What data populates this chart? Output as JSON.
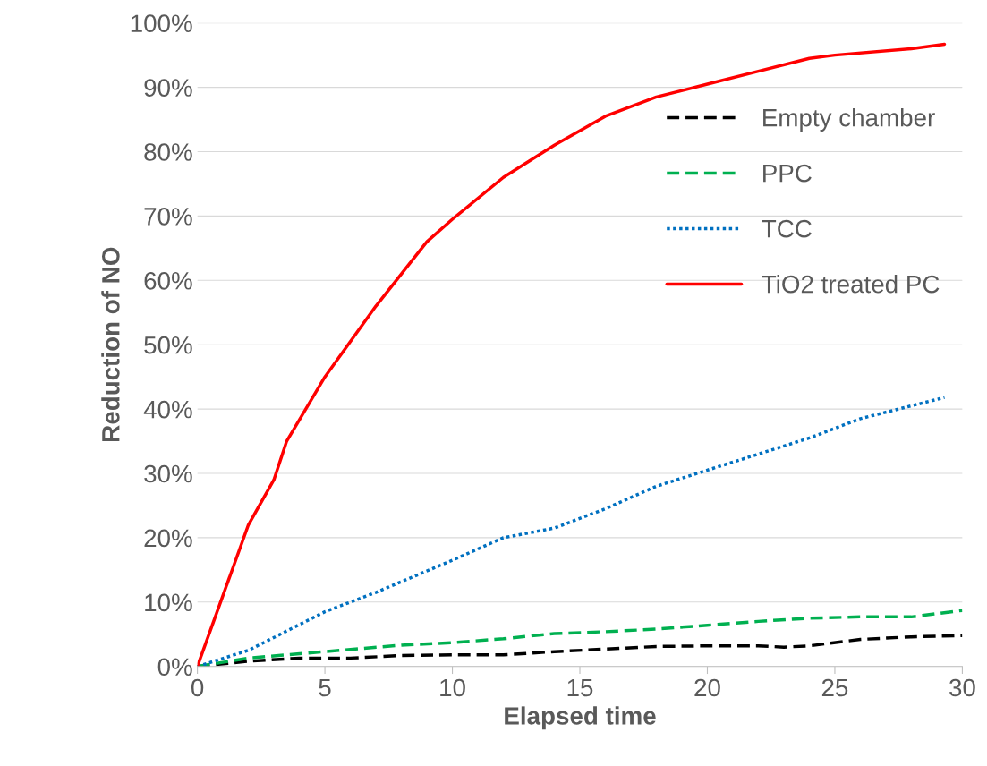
{
  "chart_data": {
    "type": "line",
    "xlabel": "Elapsed time",
    "ylabel": "Reduction of NO",
    "xlim": [
      0,
      30
    ],
    "xticks": [
      0,
      5,
      10,
      15,
      20,
      25,
      30
    ],
    "ylim": [
      0,
      100
    ],
    "yticks": [
      {
        "value": 0,
        "label": "0%"
      },
      {
        "value": 10,
        "label": "10%"
      },
      {
        "value": 20,
        "label": "20%"
      },
      {
        "value": 30,
        "label": "30%"
      },
      {
        "value": 40,
        "label": "40%"
      },
      {
        "value": 50,
        "label": "50%"
      },
      {
        "value": 60,
        "label": "60%"
      },
      {
        "value": 70,
        "label": "70%"
      },
      {
        "value": 80,
        "label": "80%"
      },
      {
        "value": 90,
        "label": "90%"
      },
      {
        "value": 100,
        "label": "100%"
      }
    ],
    "grid": "y",
    "legend": "right",
    "series": [
      {
        "name": "Empty chamber",
        "color": "#000000",
        "line_style": "dashed",
        "x": [
          0,
          2,
          4,
          6,
          8,
          10,
          12,
          14,
          16,
          18,
          20,
          22,
          23,
          24,
          26,
          28,
          30
        ],
        "values": [
          0,
          0.8,
          1.3,
          1.3,
          1.7,
          1.8,
          1.8,
          2.3,
          2.7,
          3.1,
          3.2,
          3.2,
          3,
          3.2,
          4.2,
          4.6,
          4.8
        ]
      },
      {
        "name": "PPC",
        "color": "#00b050",
        "line_style": "dashed",
        "x": [
          0,
          2,
          5,
          8,
          10,
          12,
          14,
          16,
          18,
          20,
          22,
          24,
          26,
          28,
          30
        ],
        "values": [
          0,
          1.3,
          2.3,
          3.3,
          3.7,
          4.3,
          5.1,
          5.4,
          5.8,
          6.4,
          7,
          7.5,
          7.7,
          7.7,
          8.7
        ]
      },
      {
        "name": "TCC",
        "color": "#0070c0",
        "line_style": "dotted",
        "x": [
          0,
          2,
          4,
          5,
          7,
          10,
          12,
          14,
          16,
          18,
          20,
          22,
          24,
          26,
          28,
          29.3
        ],
        "values": [
          0,
          2.5,
          6.5,
          8.5,
          11.5,
          16.5,
          20,
          21.5,
          24.5,
          28,
          30.5,
          33,
          35.5,
          38.5,
          40.5,
          41.8
        ]
      },
      {
        "name": "TiO2 treated PC",
        "color": "#ff0000",
        "line_style": "solid",
        "x": [
          0,
          1,
          2,
          3,
          3.5,
          5,
          7,
          9,
          10,
          12,
          14,
          16,
          18,
          20,
          22,
          24,
          25,
          28,
          29.3
        ],
        "values": [
          0,
          11,
          22,
          29,
          35,
          45,
          56,
          66,
          69.5,
          76,
          81,
          85.5,
          88.5,
          90.5,
          92.5,
          94.5,
          95,
          96,
          96.7
        ]
      }
    ]
  }
}
